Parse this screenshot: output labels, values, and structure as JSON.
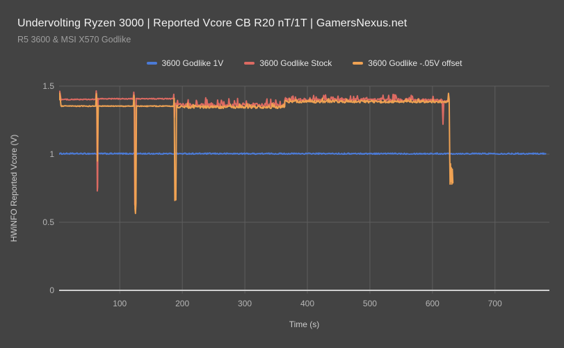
{
  "header": {
    "title": "Undervolting Ryzen 3000 | Reported Vcore CB R20 nT/1T | GamersNexus.net",
    "subtitle": "R5 3600 & MSI X570 Godlike"
  },
  "colors": {
    "background": "#434343",
    "grid": "#5e5e5e",
    "axis_line": "#cfcfcf",
    "tick_text": "#b5b5b5",
    "axis_title_text": "#cdcdcd",
    "title_text": "#f2f2f2",
    "subtitle_text": "#9e9e9e",
    "legend_text": "#e5e5e5",
    "series_blue": "#4b7ad6",
    "series_red": "#dc6a62",
    "series_orange": "#efa253"
  },
  "chart_data": {
    "type": "line",
    "title": "Undervolting Ryzen 3000 | Reported Vcore CB R20 nT/1T | GamersNexus.net",
    "subtitle": "R5 3600 & MSI X570 Godlike",
    "xlabel": "Time (s)",
    "ylabel": "HWiNFO Reported Vcore (V)",
    "xlim": [
      3,
      787
    ],
    "ylim": [
      0,
      1.5
    ],
    "x_ticks": [
      100,
      200,
      300,
      400,
      500,
      600,
      700
    ],
    "y_ticks": [
      0,
      0.5,
      1,
      1.5
    ],
    "y_tick_labels": [
      "0",
      "0.5",
      "1",
      "1.5"
    ],
    "grid": true,
    "legend_position": "top",
    "series": [
      {
        "name": "3600 Godlike 1V",
        "color": "#4b7ad6",
        "description": "Flat line at ~1.00 V from t=3 s to t=781 s",
        "segments": [
          {
            "kind": "noisy",
            "t0": 3,
            "t1": 781,
            "v": 1.004,
            "amp": 0.0045
          }
        ]
      },
      {
        "name": "3600 Godlike Stock",
        "color": "#dc6a62",
        "description": "~1.40-1.41 V plateaus with dips to 0.73 V (t=64), 0.61 V (t=125), 1.27 V (t=187); noisy 1.36 V band t=188-364; noisy 1.40 V band t=364-615; dip to 1.22 V at t=617; ends t=626",
        "segments": [
          {
            "kind": "line",
            "pts": [
              [
                3,
                1.41
              ],
              [
                4,
                1.462
              ],
              [
                6,
                1.403
              ]
            ]
          },
          {
            "kind": "noisy",
            "t0": 6,
            "t1": 61,
            "v": 1.402,
            "amp": 0.0035
          },
          {
            "kind": "line",
            "pts": [
              [
                61.5,
                1.402
              ],
              [
                62.4,
                1.465
              ],
              [
                63.3,
                1.41
              ],
              [
                64.0,
                0.73
              ],
              [
                64.6,
                0.76
              ],
              [
                65.4,
                1.405
              ]
            ]
          },
          {
            "kind": "noisy",
            "t0": 65.4,
            "t1": 121,
            "v": 1.407,
            "amp": 0.0035
          },
          {
            "kind": "line",
            "pts": [
              [
                121.5,
                1.407
              ],
              [
                122.4,
                1.455
              ],
              [
                123.2,
                1.41
              ],
              [
                124.0,
                0.63
              ],
              [
                125.4,
                0.61
              ],
              [
                126.2,
                1.407
              ]
            ]
          },
          {
            "kind": "noisy",
            "t0": 126.2,
            "t1": 185,
            "v": 1.407,
            "amp": 0.0035
          },
          {
            "kind": "line",
            "pts": [
              [
                185.5,
                1.407
              ],
              [
                186.4,
                1.44
              ],
              [
                187.4,
                1.27
              ],
              [
                188.4,
                1.375
              ]
            ]
          },
          {
            "kind": "noisy",
            "t0": 188.4,
            "t1": 364,
            "v": 1.36,
            "amp": 0.013,
            "spike": 0.05,
            "p": 0.18
          },
          {
            "kind": "noisy",
            "t0": 364,
            "t1": 615,
            "v": 1.398,
            "amp": 0.011,
            "spike": 0.038,
            "p": 0.18
          },
          {
            "kind": "line",
            "pts": [
              [
                615.5,
                1.398
              ],
              [
                616.8,
                1.22
              ],
              [
                618.2,
                1.388
              ]
            ]
          },
          {
            "kind": "noisy",
            "t0": 618.2,
            "t1": 626,
            "v": 1.39,
            "amp": 0.004
          }
        ]
      },
      {
        "name": "3600 Godlike -.05V offset",
        "color": "#efa253",
        "description": "~1.35 V plateaus with dips to 0.95 V (t=64), 0.57 V (t=125), 0.66 V (t=188); noisy 1.35 V band t=191-364; noisy 1.39 V band t=364-624; final plunge to 0.78 V, ends t=633",
        "segments": [
          {
            "kind": "line",
            "pts": [
              [
                3,
                1.4
              ],
              [
                4,
                1.448
              ],
              [
                6,
                1.356
              ]
            ]
          },
          {
            "kind": "noisy",
            "t0": 6,
            "t1": 61,
            "v": 1.353,
            "amp": 0.003
          },
          {
            "kind": "line",
            "pts": [
              [
                61.5,
                1.353
              ],
              [
                62.6,
                1.445
              ],
              [
                63.5,
                1.36
              ],
              [
                64.3,
                0.95
              ],
              [
                65.6,
                1.353
              ]
            ]
          },
          {
            "kind": "noisy",
            "t0": 65.6,
            "t1": 121.2,
            "v": 1.353,
            "amp": 0.003
          },
          {
            "kind": "line",
            "pts": [
              [
                121.7,
                1.353
              ],
              [
                122.7,
                1.432
              ],
              [
                123.6,
                1.36
              ],
              [
                124.4,
                0.6
              ],
              [
                125.1,
                0.565
              ],
              [
                125.9,
                0.64
              ],
              [
                126.7,
                1.353
              ]
            ]
          },
          {
            "kind": "noisy",
            "t0": 126.7,
            "t1": 185.6,
            "v": 1.353,
            "amp": 0.003
          },
          {
            "kind": "line",
            "pts": [
              [
                186.0,
                1.353
              ],
              [
                187.0,
                1.41
              ],
              [
                188.0,
                0.66
              ],
              [
                188.9,
                0.71
              ],
              [
                189.7,
                0.665
              ],
              [
                190.7,
                1.347
              ]
            ]
          },
          {
            "kind": "noisy",
            "t0": 190.7,
            "t1": 364,
            "v": 1.346,
            "amp": 0.01,
            "spike": 0.026,
            "p": 0.15
          },
          {
            "kind": "noisy",
            "t0": 364,
            "t1": 624,
            "v": 1.386,
            "amp": 0.009,
            "spike": 0.02,
            "p": 0.15
          },
          {
            "kind": "line",
            "pts": [
              [
                624.5,
                1.386
              ],
              [
                625.6,
                1.447
              ],
              [
                626.8,
                1.4
              ],
              [
                627.6,
                0.98
              ],
              [
                628.2,
                0.78
              ],
              [
                628.9,
                0.93
              ],
              [
                629.6,
                0.8
              ],
              [
                630.3,
                0.9
              ],
              [
                631.0,
                0.78
              ],
              [
                631.8,
                0.89
              ],
              [
                632.6,
                0.79
              ]
            ]
          }
        ]
      }
    ]
  }
}
